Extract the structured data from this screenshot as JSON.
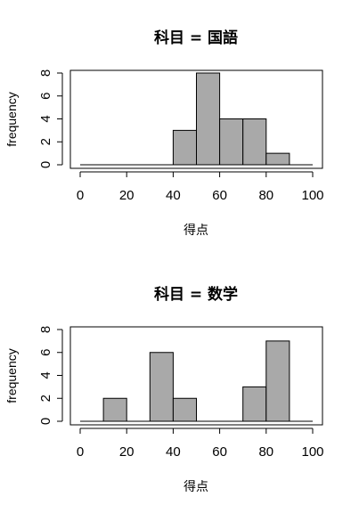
{
  "chart_data": [
    {
      "type": "bar",
      "title": "科目 = 国語",
      "xlabel": "得点",
      "ylabel": "frequency",
      "bins": [
        [
          40,
          50
        ],
        [
          50,
          60
        ],
        [
          60,
          70
        ],
        [
          70,
          80
        ],
        [
          80,
          90
        ],
        [
          90,
          100
        ]
      ],
      "values": [
        3,
        8,
        4,
        4,
        1,
        0
      ],
      "xlim": [
        0,
        100
      ],
      "ylim": [
        0,
        8
      ],
      "x_ticks": [
        "0",
        "20",
        "40",
        "60",
        "80",
        "100"
      ],
      "y_ticks": [
        "0",
        "2",
        "4",
        "6",
        "8"
      ],
      "bar_color": "#a9a9a9"
    },
    {
      "type": "bar",
      "title": "科目 = 数学",
      "xlabel": "得点",
      "ylabel": "frequency",
      "bins": [
        [
          10,
          20
        ],
        [
          20,
          30
        ],
        [
          30,
          40
        ],
        [
          40,
          50
        ],
        [
          50,
          60
        ],
        [
          60,
          70
        ],
        [
          70,
          80
        ],
        [
          80,
          90
        ],
        [
          90,
          100
        ]
      ],
      "values": [
        2,
        0,
        6,
        2,
        0,
        0,
        3,
        7,
        0
      ],
      "xlim": [
        0,
        100
      ],
      "ylim": [
        0,
        8
      ],
      "x_ticks": [
        "0",
        "20",
        "40",
        "60",
        "80",
        "100"
      ],
      "y_ticks": [
        "0",
        "2",
        "4",
        "6",
        "8"
      ],
      "bar_color": "#a9a9a9"
    }
  ]
}
